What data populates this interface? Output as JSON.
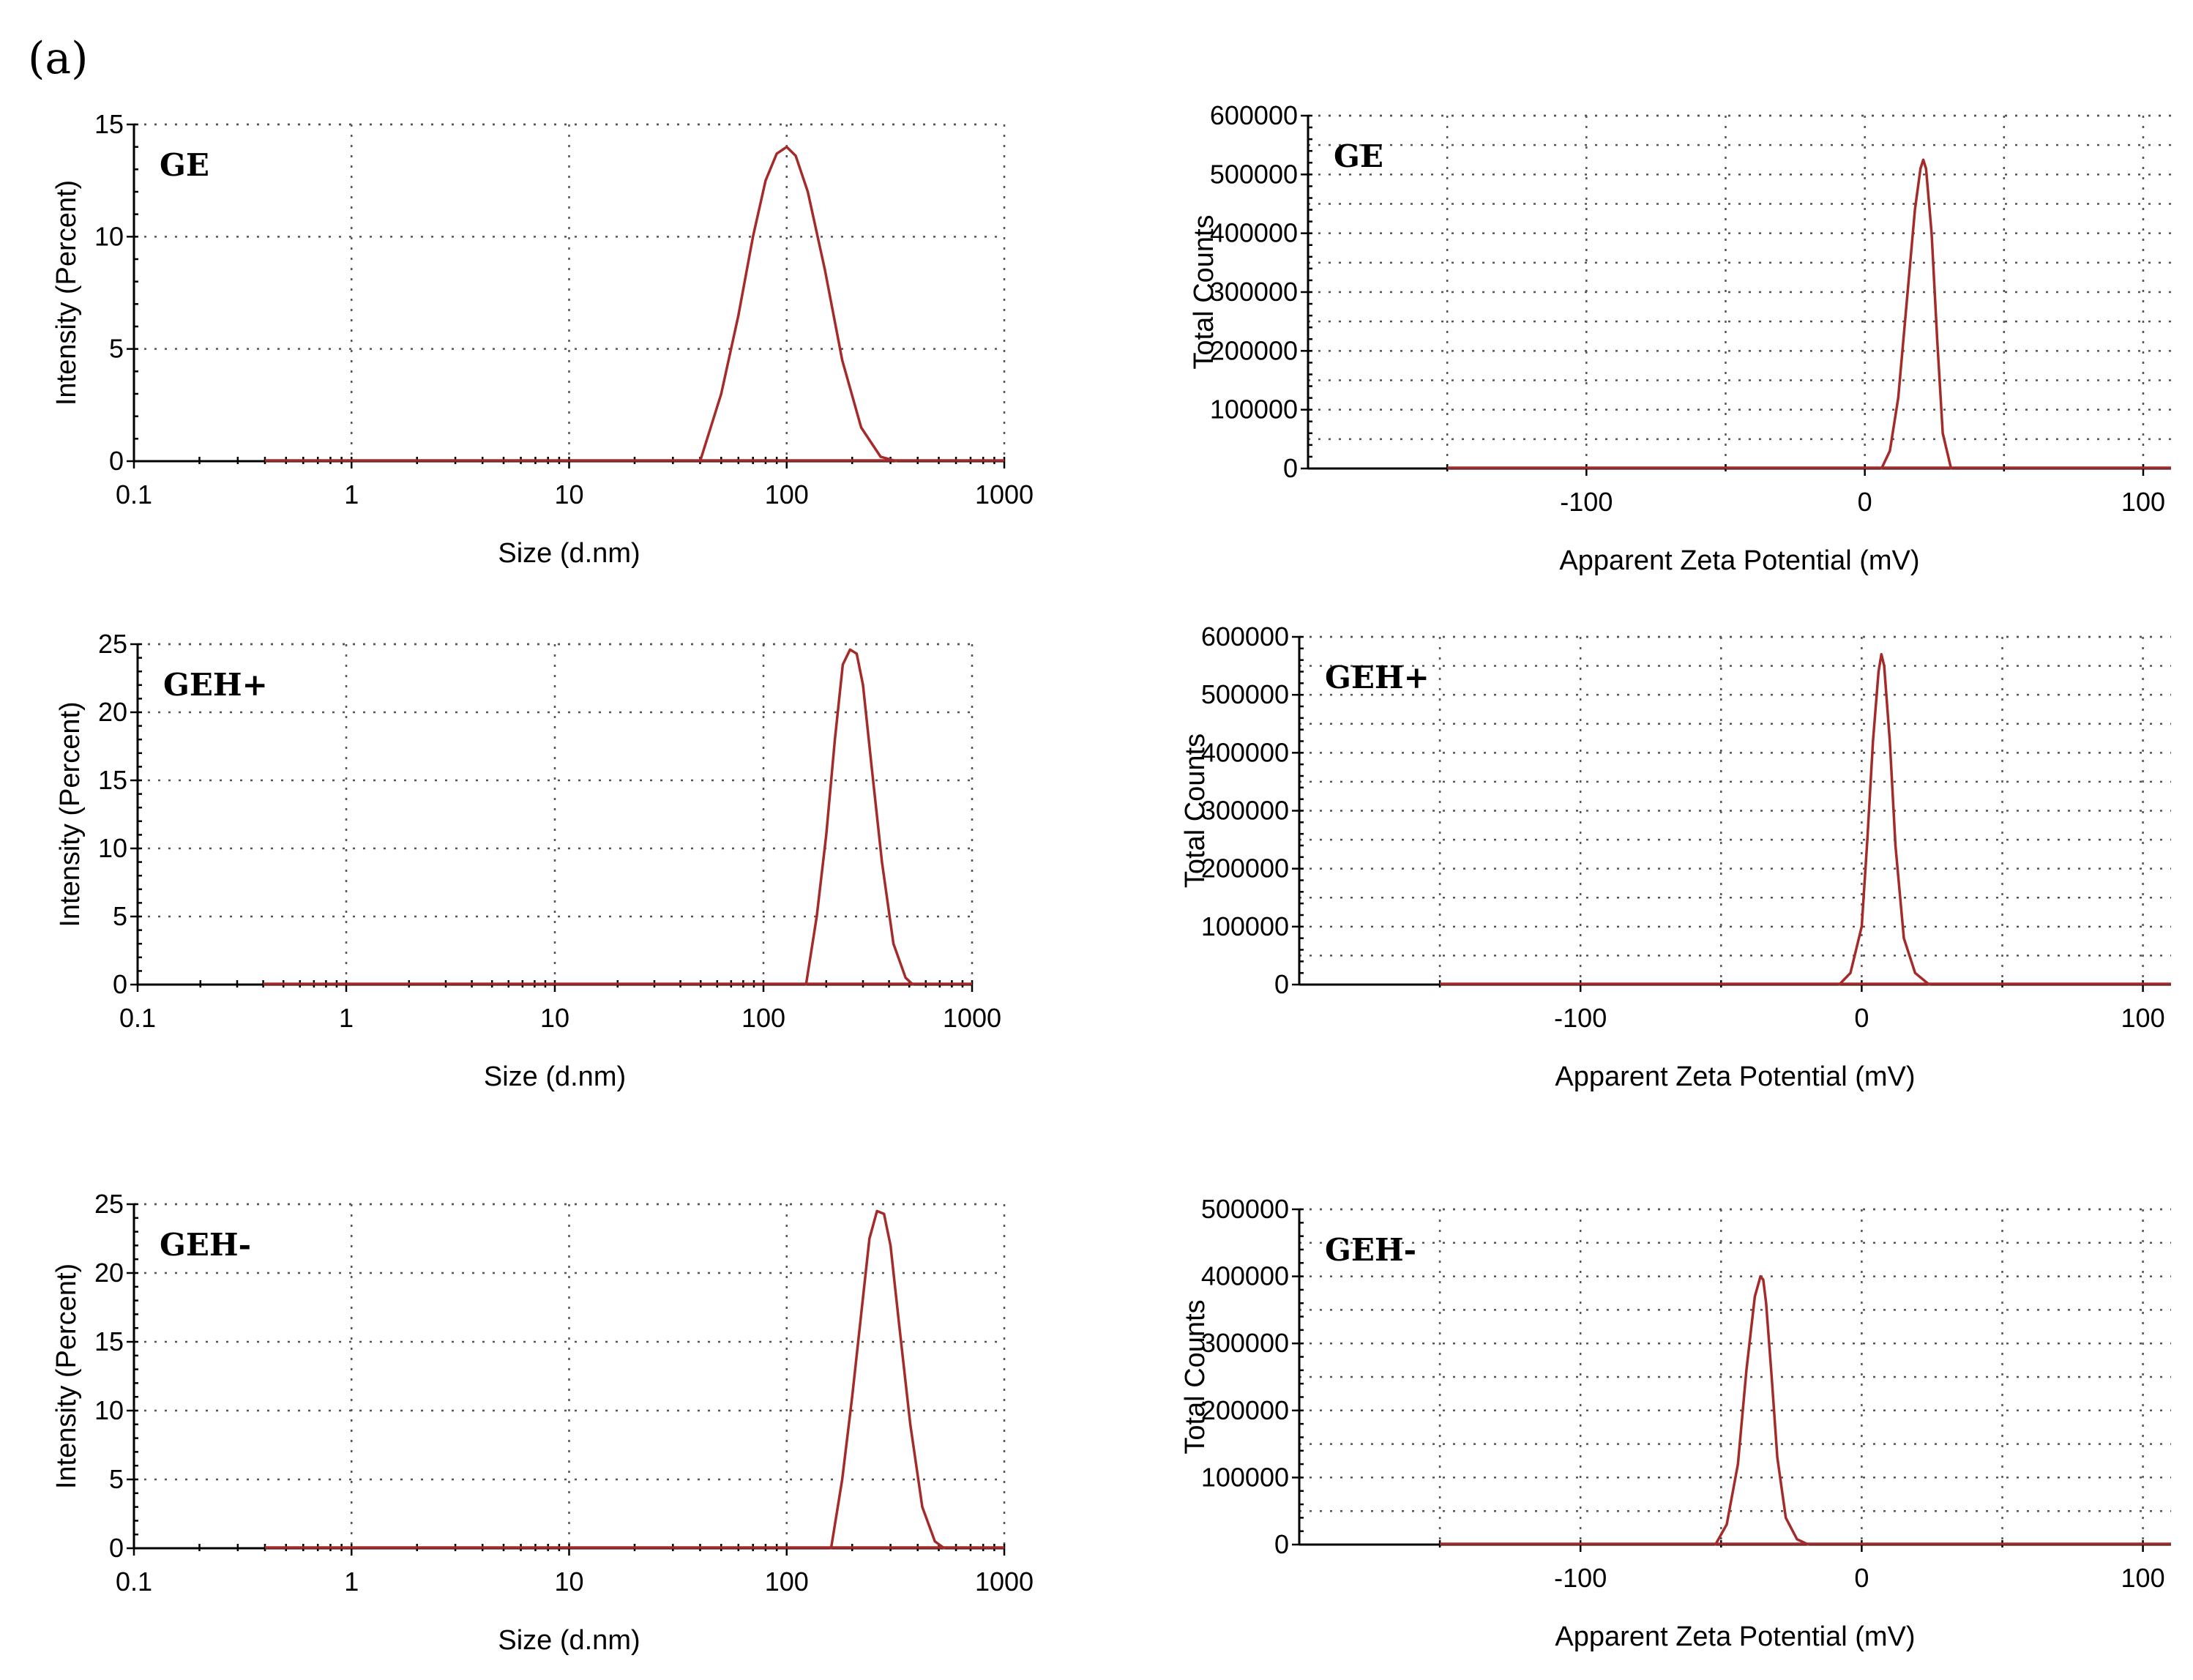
{
  "figure": {
    "panel_label": "(a)"
  },
  "chart_data": [
    {
      "id": "size-GE",
      "type": "line",
      "scale_x": "log",
      "series_label": "GE",
      "xlabel": "Size (d.nm)",
      "ylabel": "Intensity (Percent)",
      "xlim": [
        0.1,
        1000
      ],
      "ylim": [
        0,
        15
      ],
      "xticks": [
        0.1,
        1,
        10,
        100,
        1000
      ],
      "xtick_labels": [
        "0.1",
        "1",
        "10",
        "100",
        "1000"
      ],
      "yticks": [
        0,
        5,
        10,
        15
      ],
      "ytick_labels": [
        "0",
        "5",
        "10",
        "15"
      ],
      "grid": true,
      "x": [
        40,
        50,
        60,
        70,
        80,
        90,
        100,
        110,
        125,
        150,
        180,
        220,
        270,
        320
      ],
      "y": [
        0,
        3.0,
        6.5,
        10.0,
        12.5,
        13.7,
        14.0,
        13.6,
        12.0,
        8.5,
        4.5,
        1.5,
        0.2,
        0
      ]
    },
    {
      "id": "zeta-GE",
      "type": "line",
      "scale_x": "linear",
      "series_label": "GE",
      "xlabel": "Apparent Zeta Potential (mV)",
      "ylabel": "Total Counts",
      "xlim": [
        -200,
        110
      ],
      "ylim": [
        0,
        600000
      ],
      "xticks": [
        -100,
        0,
        100
      ],
      "xtick_labels": [
        "-100",
        "0",
        "100"
      ],
      "yticks": [
        0,
        100000,
        200000,
        300000,
        400000,
        500000,
        600000
      ],
      "ytick_labels": [
        "0",
        "100000",
        "200000",
        "300000",
        "400000",
        "500000",
        "600000"
      ],
      "grid": true,
      "x": [
        6,
        9,
        12,
        15,
        18,
        20,
        21,
        22,
        24,
        26,
        28,
        31
      ],
      "y": [
        0,
        30000,
        120000,
        280000,
        440000,
        510000,
        525000,
        510000,
        400000,
        220000,
        60000,
        0
      ]
    },
    {
      "id": "size-GEHplus",
      "type": "line",
      "scale_x": "log",
      "series_label": "GEH+",
      "xlabel": "Size (d.nm)",
      "ylabel": "Intensity (Percent)",
      "xlim": [
        0.1,
        1000
      ],
      "ylim": [
        0,
        25
      ],
      "xticks": [
        0.1,
        1,
        10,
        100,
        1000
      ],
      "xtick_labels": [
        "0.1",
        "1",
        "10",
        "100",
        "1000"
      ],
      "yticks": [
        0,
        5,
        10,
        15,
        20,
        25
      ],
      "ytick_labels": [
        "0",
        "5",
        "10",
        "15",
        "20",
        "25"
      ],
      "grid": true,
      "x": [
        160,
        180,
        200,
        220,
        240,
        260,
        280,
        300,
        330,
        370,
        420,
        480,
        520
      ],
      "y": [
        0,
        5,
        11,
        18,
        23.5,
        24.6,
        24.3,
        22,
        16,
        9,
        3,
        0.5,
        0
      ]
    },
    {
      "id": "zeta-GEHplus",
      "type": "line",
      "scale_x": "linear",
      "series_label": "GEH+",
      "xlabel": "Apparent Zeta Potential (mV)",
      "ylabel": "Total Counts",
      "xlim": [
        -200,
        110
      ],
      "ylim": [
        0,
        600000
      ],
      "xticks": [
        -100,
        0,
        100
      ],
      "xtick_labels": [
        "-100",
        "0",
        "100"
      ],
      "yticks": [
        0,
        100000,
        200000,
        300000,
        400000,
        500000,
        600000
      ],
      "ytick_labels": [
        "0",
        "100000",
        "200000",
        "300000",
        "400000",
        "500000",
        "600000"
      ],
      "grid": true,
      "x": [
        -8,
        -4,
        0,
        2,
        4,
        6,
        7,
        8,
        10,
        12,
        15,
        19,
        24
      ],
      "y": [
        0,
        20000,
        100000,
        250000,
        420000,
        540000,
        570000,
        550000,
        420000,
        240000,
        80000,
        20000,
        0
      ]
    },
    {
      "id": "size-GEHminus",
      "type": "line",
      "scale_x": "log",
      "series_label": "GEH-",
      "xlabel": "Size (d.nm)",
      "ylabel": "Intensity (Percent)",
      "xlim": [
        0.1,
        1000
      ],
      "ylim": [
        0,
        25
      ],
      "xticks": [
        0.1,
        1,
        10,
        100,
        1000
      ],
      "xtick_labels": [
        "0.1",
        "1",
        "10",
        "100",
        "1000"
      ],
      "yticks": [
        0,
        5,
        10,
        15,
        20,
        25
      ],
      "ytick_labels": [
        "0",
        "5",
        "10",
        "15",
        "20",
        "25"
      ],
      "grid": true,
      "x": [
        160,
        180,
        200,
        220,
        240,
        260,
        280,
        300,
        330,
        370,
        420,
        480,
        530
      ],
      "y": [
        0,
        5,
        11,
        17,
        22.5,
        24.5,
        24.3,
        22,
        16,
        9,
        3,
        0.5,
        0
      ]
    },
    {
      "id": "zeta-GEHminus",
      "type": "line",
      "scale_x": "linear",
      "series_label": "GEH-",
      "xlabel": "Apparent Zeta Potential (mV)",
      "ylabel": "Total Counts",
      "xlim": [
        -200,
        110
      ],
      "ylim": [
        0,
        500000
      ],
      "xticks": [
        -100,
        0,
        100
      ],
      "xtick_labels": [
        "-100",
        "0",
        "100"
      ],
      "yticks": [
        0,
        100000,
        200000,
        300000,
        400000,
        500000
      ],
      "ytick_labels": [
        "0",
        "100000",
        "200000",
        "300000",
        "400000",
        "500000"
      ],
      "grid": true,
      "x": [
        -52,
        -48,
        -44,
        -41,
        -38,
        -36,
        -35,
        -34,
        -32,
        -30,
        -27,
        -23,
        -19
      ],
      "y": [
        0,
        30000,
        120000,
        260000,
        370000,
        400000,
        395000,
        360000,
        250000,
        130000,
        40000,
        8000,
        0
      ]
    }
  ]
}
